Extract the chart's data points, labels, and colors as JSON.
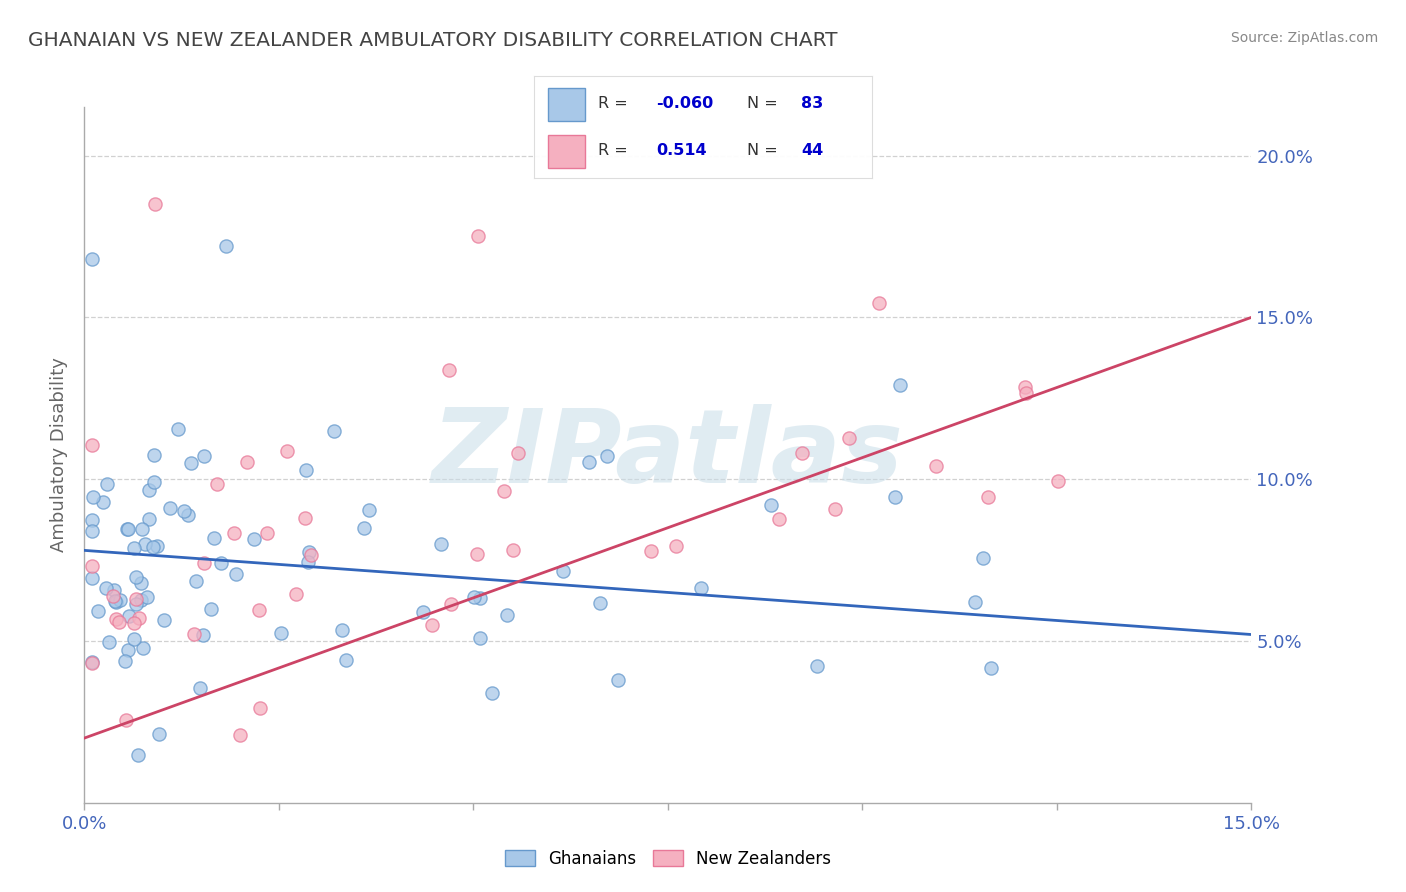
{
  "title": "GHANAIAN VS NEW ZEALANDER AMBULATORY DISABILITY CORRELATION CHART",
  "source_text": "Source: ZipAtlas.com",
  "ylabel": "Ambulatory Disability",
  "xlim": [
    0.0,
    0.15
  ],
  "ylim": [
    0.0,
    0.215
  ],
  "ytick_positions": [
    0.05,
    0.1,
    0.15,
    0.2
  ],
  "ytick_labels": [
    "5.0%",
    "10.0%",
    "15.0%",
    "20.0%"
  ],
  "xtick_positions": [
    0.0,
    0.025,
    0.05,
    0.075,
    0.1,
    0.125,
    0.15
  ],
  "xtick_labels": [
    "0.0%",
    "",
    "",
    "",
    "",
    "",
    "15.0%"
  ],
  "blue_R": -0.06,
  "blue_N": 83,
  "pink_R": 0.514,
  "pink_N": 44,
  "blue_scatter_color": "#a8c8e8",
  "blue_scatter_edge": "#6699cc",
  "pink_scatter_color": "#f5b0c0",
  "pink_scatter_edge": "#e87898",
  "blue_line_color": "#3366bb",
  "pink_line_color": "#cc4466",
  "watermark_color": "#c8dde8",
  "watermark_text": "ZIPatlas",
  "tick_color": "#4466bb",
  "title_color": "#444444",
  "source_color": "#888888",
  "ylabel_color": "#666666",
  "legend_label1": "Ghanaians",
  "legend_label2": "New Zealanders",
  "legend_R_color": "#0000cc",
  "legend_label_color": "#333333",
  "blue_trend_start_y": 0.078,
  "blue_trend_end_y": 0.052,
  "pink_trend_start_y": 0.02,
  "pink_trend_end_y": 0.15
}
